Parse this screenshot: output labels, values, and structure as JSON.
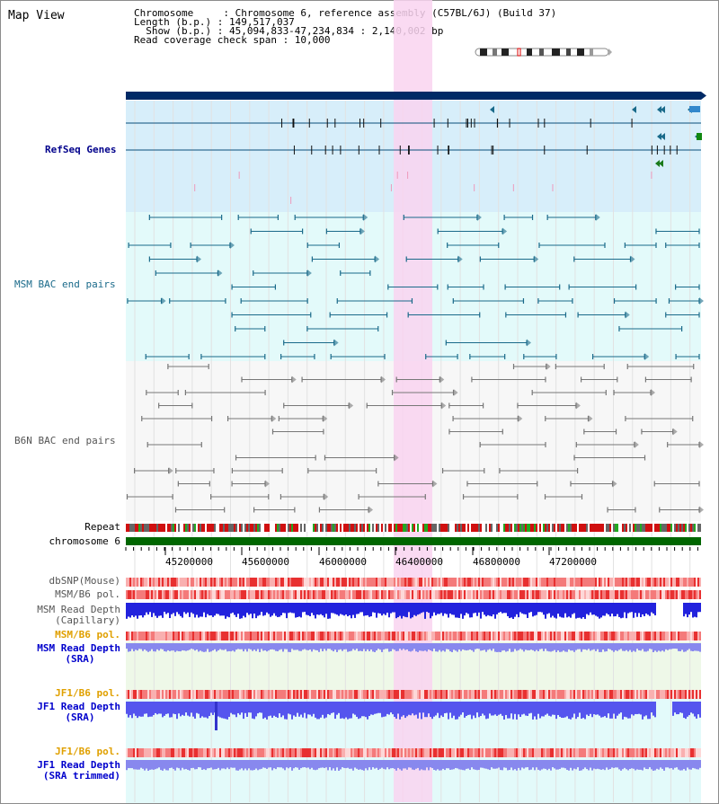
{
  "header": {
    "title": "Map View",
    "info_lines": [
      "Chromosome     : Chromosome 6, reference assembly (C57BL/6J) (Build 37)",
      "Length (b.p.) : 149,517,037",
      "  Show (b.p.) : 45,094,833-47,234,834 : 2,140,002 bp",
      "Read coverage check span : 10,000"
    ]
  },
  "tracks": {
    "refseq": "RefSeq Genes",
    "msm_bac": "MSM BAC end pairs",
    "b6n_bac": "B6N BAC end pairs",
    "repeat": "Repeat",
    "chromosome": "chromosome 6",
    "dbsnp": "dbSNP(Mouse)",
    "msm_pol": "MSM/B6 pol.",
    "msm_cap_1": "MSM Read Depth",
    "msm_cap_2": "(Capillary)",
    "msm_pol_2": "MSM/B6 pol.",
    "msm_sra_1": "MSM Read Depth",
    "msm_sra_2": "(SRA)",
    "jf1_pol": "JF1/B6 pol.",
    "jf1_sra_1": "JF1 Read Depth",
    "jf1_sra_2": "(SRA)",
    "jf1_pol_2": "JF1/B6 pol.",
    "jf1_trim_1": "JF1 Read Depth",
    "jf1_trim_2": "(SRA trimmed)"
  },
  "axis": {
    "ticks": [
      "45200000",
      "45600000",
      "46000000",
      "46400000",
      "46800000",
      "47200000"
    ]
  },
  "colors": {
    "highlight": "#f9d3f0",
    "refseq_bg": "#d7eefa",
    "msm_bg": "#e3fafa",
    "b6n_bg": "#f7f7f7",
    "chrom_bar": "#006600",
    "gene_bar": "#002a66",
    "depth_blue": "#3333ee",
    "depth_light": "#8888ee"
  }
}
